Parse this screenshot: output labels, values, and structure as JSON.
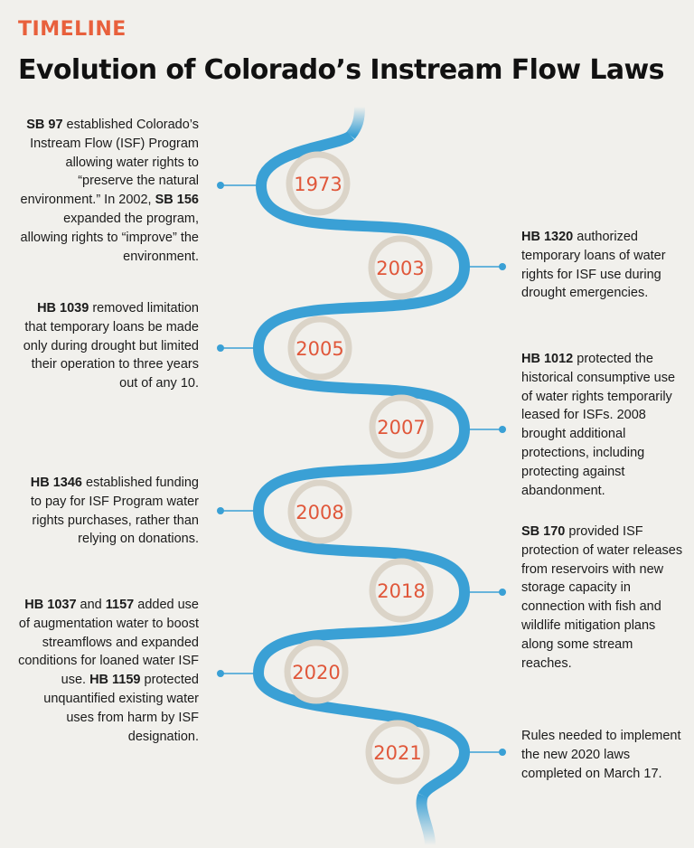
{
  "header": {
    "kicker": "TIMELINE",
    "title": "Evolution of Colorado’s Instream Flow Laws"
  },
  "colors": {
    "river": "#3aa0d5",
    "ring": "#dbd4c8",
    "year": "#e0573a",
    "kicker": "#e8603c",
    "background": "#f1f0ec"
  },
  "events": [
    {
      "year": "1973",
      "side": "left",
      "parts": [
        {
          "bold": "SB 97",
          "text": " established Colorado’s Instream Flow (ISF) Program allowing water rights to “preserve the natural environment.” In 2002, "
        },
        {
          "bold": "SB 156",
          "text": " expanded the program, allowing rights to “improve” the environment."
        }
      ]
    },
    {
      "year": "2003",
      "side": "right",
      "parts": [
        {
          "bold": "HB 1320",
          "text": " authorized temporary loans of water rights for ISF use during drought emergencies."
        }
      ]
    },
    {
      "year": "2005",
      "side": "left",
      "parts": [
        {
          "bold": "HB 1039",
          "text": " removed limitation that temporary loans be made only during drought but limited their operation to three years out of any 10."
        }
      ]
    },
    {
      "year": "2007",
      "side": "right",
      "parts": [
        {
          "bold": "HB 1012",
          "text": " protected the historical consumptive use of water rights temporarily leased for ISFs. 2008 brought additional protections, including protecting against abandonment."
        }
      ]
    },
    {
      "year": "2008",
      "side": "left",
      "parts": [
        {
          "bold": "HB 1346",
          "text": " established funding to pay for ISF Program water rights purchases, rather than relying on donations."
        }
      ]
    },
    {
      "year": "2018",
      "side": "right",
      "parts": [
        {
          "bold": "SB 170",
          "text": " provided ISF protection of water releases from reservoirs with new storage capacity in connection with fish and wildlife mitigation plans along some stream reaches."
        }
      ]
    },
    {
      "year": "2020",
      "side": "left",
      "parts": [
        {
          "bold": "HB 1037",
          "text": " and "
        },
        {
          "bold": "1157",
          "text": " added use of augmentation water to boost streamflows and expanded conditions for loaned water ISF use. "
        },
        {
          "bold": "HB 1159",
          "text": " protected unquantified existing water uses from harm by ISF designation."
        }
      ]
    },
    {
      "year": "2021",
      "side": "right",
      "parts": [
        {
          "text": "Rules needed to implement the new 2020 laws completed on March 17."
        }
      ]
    }
  ]
}
